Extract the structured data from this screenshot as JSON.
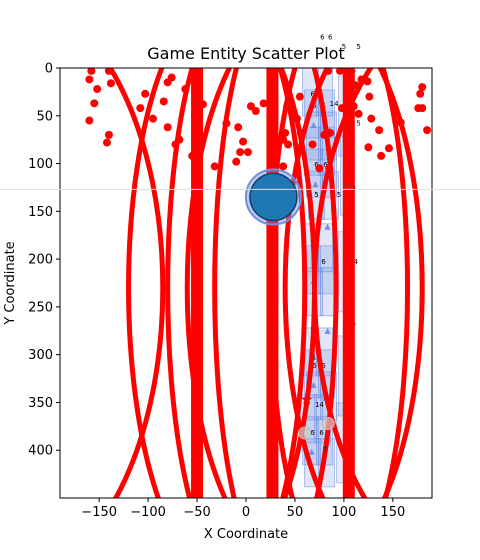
{
  "chart_data": {
    "type": "scatter",
    "title": "Game Entity Scatter Plot",
    "xlabel": "X Coordinate",
    "ylabel": "Y Coordinate",
    "xlim": [
      -190,
      190
    ],
    "ylim": [
      450,
      0
    ],
    "y_inverted": true,
    "grid": false,
    "x_ticks": [
      -150,
      -100,
      -50,
      0,
      50,
      100,
      150
    ],
    "y_ticks": [
      0,
      50,
      100,
      150,
      200,
      250,
      300,
      350,
      400
    ],
    "colors": {
      "enemy": "#ff0000",
      "player": "#1f77b4",
      "tile": "#6f8fe0",
      "waypoint": "#cccccc"
    },
    "enemies": [
      [
        -158,
        3
      ],
      [
        -140,
        3
      ],
      [
        -160,
        12
      ],
      [
        -152,
        22
      ],
      [
        -138,
        16
      ],
      [
        -155,
        37
      ],
      [
        -160,
        55
      ],
      [
        -140,
        70
      ],
      [
        -142,
        78
      ],
      [
        -103,
        27
      ],
      [
        -108,
        42
      ],
      [
        -95,
        53
      ],
      [
        -80,
        15
      ],
      [
        -76,
        10
      ],
      [
        -84,
        35
      ],
      [
        -80,
        62
      ],
      [
        -68,
        75
      ],
      [
        -72,
        80
      ],
      [
        -62,
        22
      ],
      [
        -55,
        92
      ],
      [
        -44,
        38
      ],
      [
        -20,
        58
      ],
      [
        -8,
        62
      ],
      [
        -3,
        77
      ],
      [
        -6,
        88
      ],
      [
        2,
        88
      ],
      [
        -10,
        98
      ],
      [
        -32,
        103
      ],
      [
        5,
        40
      ],
      [
        10,
        45
      ],
      [
        18,
        37
      ],
      [
        42,
        40
      ],
      [
        52,
        53
      ],
      [
        40,
        68
      ],
      [
        38,
        75
      ],
      [
        43,
        80
      ],
      [
        56,
        68
      ],
      [
        38,
        103
      ],
      [
        55,
        30
      ],
      [
        68,
        80
      ],
      [
        80,
        70
      ],
      [
        75,
        105
      ],
      [
        85,
        105
      ],
      [
        86,
        68
      ],
      [
        100,
        60
      ],
      [
        106,
        62
      ],
      [
        110,
        40
      ],
      [
        98,
        42
      ],
      [
        115,
        48
      ],
      [
        112,
        18
      ],
      [
        118,
        12
      ],
      [
        124,
        14
      ],
      [
        126,
        30
      ],
      [
        128,
        53
      ],
      [
        125,
        83
      ],
      [
        136,
        65
      ],
      [
        146,
        84
      ],
      [
        138,
        92
      ],
      [
        158,
        57
      ],
      [
        180,
        20
      ],
      [
        178,
        27
      ],
      [
        176,
        42
      ],
      [
        180,
        42
      ],
      [
        185,
        65
      ],
      [
        84,
        3
      ],
      [
        96,
        3
      ]
    ],
    "enemy_lines_x": [
      -50,
      27,
      105
    ],
    "player": {
      "x": 28,
      "y": 135,
      "size": 24
    },
    "tiles": [
      {
        "x": 70,
        "y": 0,
        "labels": [
          "6",
          "6"
        ]
      },
      {
        "x": 72,
        "y": 62,
        "labels": [
          "6",
          "6"
        ]
      },
      {
        "x": 70,
        "y": 163,
        "labels": [
          "6",
          "6"
        ]
      },
      {
        "x": 70,
        "y": 272,
        "labels": [
          "6",
          "6"
        ]
      },
      {
        "x": 68,
        "y": 342,
        "labels": [
          "6",
          "6"
        ]
      }
    ],
    "tile_numbers": [
      "14",
      "14",
      "5",
      "5",
      "6",
      "14",
      "14",
      "5",
      "5",
      "14",
      "14",
      "5",
      "5",
      "14",
      "14"
    ],
    "markers": [
      {
        "kind": "star",
        "x": 62,
        "y": 347
      },
      {
        "kind": "circle",
        "x": 60,
        "y": 382
      },
      {
        "kind": "circle",
        "x": 84,
        "y": 372
      },
      {
        "kind": "arrow",
        "x": 81,
        "y": 400
      }
    ]
  }
}
